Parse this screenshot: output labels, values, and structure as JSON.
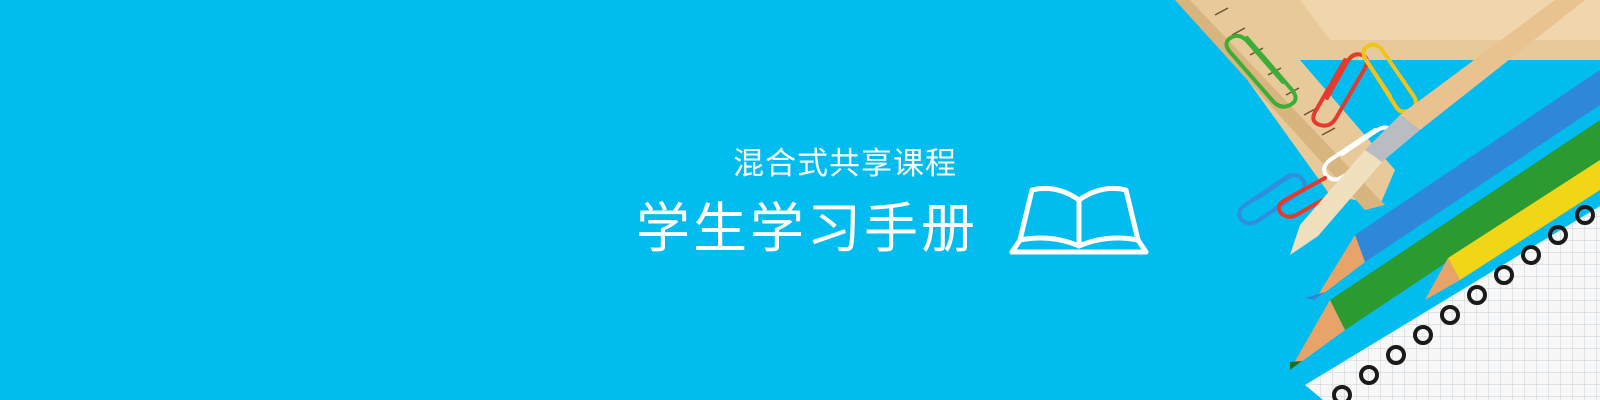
{
  "banner": {
    "subtitle": "混合式共享课程",
    "title": "学生学习手册",
    "background_color": "#01bdef",
    "icons": [
      "book-icon",
      "ruler-icon",
      "paper-clip-icon",
      "paintbrush-icon",
      "pencil-icon",
      "notebook-icon"
    ]
  }
}
